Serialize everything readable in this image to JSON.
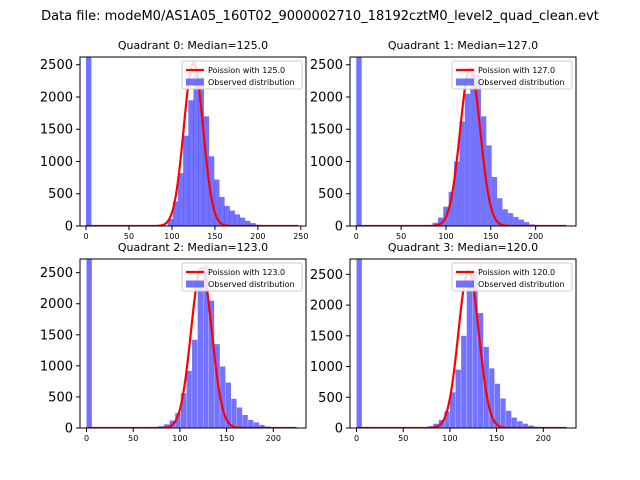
{
  "figure": {
    "suptitle": "Data file: modeM0/AS1A05_160T02_9000002710_18192cztM0_level2_quad_clean.evt"
  },
  "chart_data": [
    {
      "type": "bar",
      "title": "Quadrant 0: Median=125.0",
      "xlim": [
        -7,
        256
      ],
      "ylim": [
        0,
        2620
      ],
      "xticks": [
        0,
        50,
        100,
        150,
        200,
        250
      ],
      "yticks": [
        0,
        500,
        1000,
        1500,
        2000,
        2500
      ],
      "bin_width": 6.3,
      "hist_bins": [
        [
          0,
          2620
        ],
        [
          95,
          110
        ],
        [
          101,
          380
        ],
        [
          107,
          820
        ],
        [
          113,
          1400
        ],
        [
          119,
          1950
        ],
        [
          125,
          2380
        ],
        [
          131,
          2320
        ],
        [
          137,
          1700
        ],
        [
          143,
          1080
        ],
        [
          149,
          720
        ],
        [
          155,
          450
        ],
        [
          161,
          310
        ],
        [
          167,
          240
        ],
        [
          173,
          180
        ],
        [
          179,
          130
        ],
        [
          185,
          80
        ],
        [
          191,
          45
        ],
        [
          197,
          20
        ]
      ],
      "fit_curve": {
        "mean": 125.0,
        "amplitude": 2530,
        "x_range": [
          0,
          247
        ]
      },
      "legend": [
        {
          "label": "Poission with 125.0",
          "color": "#ff0000",
          "kind": "line"
        },
        {
          "label": "Observed distribution",
          "color": "#5a5aff",
          "kind": "patch"
        }
      ]
    },
    {
      "type": "bar",
      "title": "Quadrant 1: Median=127.0",
      "xlim": [
        -7,
        245
      ],
      "ylim": [
        0,
        2620
      ],
      "xticks": [
        0,
        50,
        100,
        150,
        200
      ],
      "yticks": [
        0,
        500,
        1000,
        1500,
        2000,
        2500
      ],
      "bin_width": 6.0,
      "hist_bins": [
        [
          0,
          2620
        ],
        [
          85,
          50
        ],
        [
          91,
          130
        ],
        [
          97,
          300
        ],
        [
          103,
          530
        ],
        [
          109,
          1000
        ],
        [
          115,
          1620
        ],
        [
          121,
          2050
        ],
        [
          127,
          2450
        ],
        [
          133,
          2350
        ],
        [
          139,
          1700
        ],
        [
          145,
          1250
        ],
        [
          151,
          760
        ],
        [
          157,
          430
        ],
        [
          163,
          260
        ],
        [
          169,
          200
        ],
        [
          175,
          140
        ],
        [
          181,
          100
        ],
        [
          187,
          60
        ],
        [
          193,
          25
        ]
      ],
      "fit_curve": {
        "mean": 127.0,
        "amplitude": 2440,
        "x_range": [
          0,
          234
        ]
      },
      "legend": [
        {
          "label": "Poission with 127.0",
          "color": "#ff0000",
          "kind": "line"
        },
        {
          "label": "Observed distribution",
          "color": "#5a5aff",
          "kind": "patch"
        }
      ]
    },
    {
      "type": "bar",
      "title": "Quadrant 2: Median=123.0",
      "xlim": [
        -7,
        235
      ],
      "ylim": [
        0,
        2720
      ],
      "xticks": [
        0,
        50,
        100,
        150,
        200
      ],
      "yticks": [
        0,
        500,
        1000,
        1500,
        2000,
        2500
      ],
      "bin_width": 5.7,
      "hist_bins": [
        [
          0,
          2720
        ],
        [
          77,
          30
        ],
        [
          83,
          60
        ],
        [
          89,
          120
        ],
        [
          95,
          240
        ],
        [
          101,
          560
        ],
        [
          107,
          920
        ],
        [
          113,
          1420
        ],
        [
          119,
          2340
        ],
        [
          125,
          2620
        ],
        [
          131,
          2050
        ],
        [
          137,
          1350
        ],
        [
          143,
          990
        ],
        [
          149,
          730
        ],
        [
          155,
          470
        ],
        [
          161,
          330
        ],
        [
          167,
          210
        ],
        [
          173,
          130
        ],
        [
          179,
          90
        ],
        [
          185,
          50
        ],
        [
          191,
          25
        ],
        [
          197,
          10
        ]
      ],
      "fit_curve": {
        "mean": 123.0,
        "amplitude": 2580,
        "x_range": [
          0,
          225
        ]
      },
      "legend": [
        {
          "label": "Poission with 123.0",
          "color": "#ff0000",
          "kind": "line"
        },
        {
          "label": "Observed distribution",
          "color": "#5a5aff",
          "kind": "patch"
        }
      ]
    },
    {
      "type": "bar",
      "title": "Quadrant 3: Median=120.0",
      "xlim": [
        -7,
        235
      ],
      "ylim": [
        0,
        2750
      ],
      "xticks": [
        0,
        50,
        100,
        150,
        200
      ],
      "yticks": [
        0,
        500,
        1000,
        1500,
        2000,
        2500
      ],
      "bin_width": 5.7,
      "hist_bins": [
        [
          0,
          2750
        ],
        [
          76,
          30
        ],
        [
          82,
          70
        ],
        [
          88,
          130
        ],
        [
          94,
          270
        ],
        [
          100,
          580
        ],
        [
          106,
          950
        ],
        [
          112,
          1500
        ],
        [
          118,
          2400
        ],
        [
          124,
          2550
        ],
        [
          130,
          1870
        ],
        [
          136,
          1320
        ],
        [
          142,
          970
        ],
        [
          148,
          720
        ],
        [
          154,
          480
        ],
        [
          160,
          280
        ],
        [
          166,
          170
        ],
        [
          172,
          110
        ],
        [
          178,
          70
        ],
        [
          184,
          40
        ],
        [
          190,
          20
        ]
      ],
      "fit_curve": {
        "mean": 120.0,
        "amplitude": 2560,
        "x_range": [
          0,
          225
        ]
      },
      "legend": [
        {
          "label": "Poission with 120.0",
          "color": "#ff0000",
          "kind": "line"
        },
        {
          "label": "Observed distribution",
          "color": "#5a5aff",
          "kind": "patch"
        }
      ]
    }
  ]
}
